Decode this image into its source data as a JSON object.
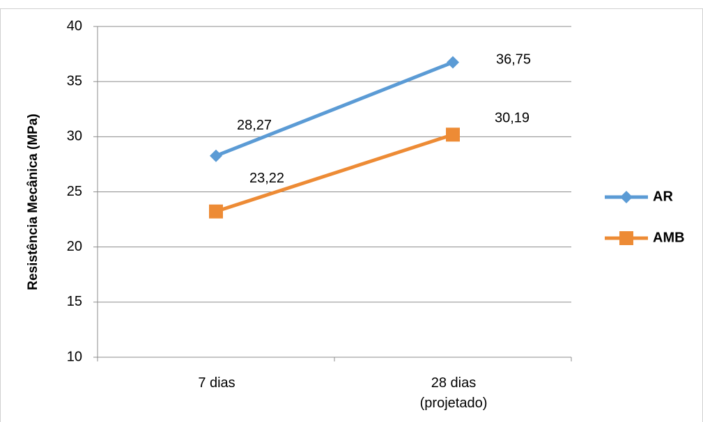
{
  "chart_data": {
    "type": "line",
    "y_label": "Resistência Mecânica (MPa)",
    "categories": [
      "7 dias",
      "28 dias (projetado)"
    ],
    "series": [
      {
        "name": "AR",
        "color": "#5b9bd5",
        "marker": "diamond",
        "values": [
          28.27,
          36.75
        ],
        "value_labels": [
          "28,27",
          "36,75"
        ]
      },
      {
        "name": "AMB",
        "color": "#ed8b35",
        "marker": "square",
        "values": [
          23.22,
          30.19
        ],
        "value_labels": [
          "23,22",
          "30,19"
        ]
      }
    ],
    "ylim": [
      10,
      40
    ],
    "yticks": [
      10,
      15,
      20,
      25,
      30,
      35,
      40
    ],
    "grid": true,
    "legend": "right"
  }
}
